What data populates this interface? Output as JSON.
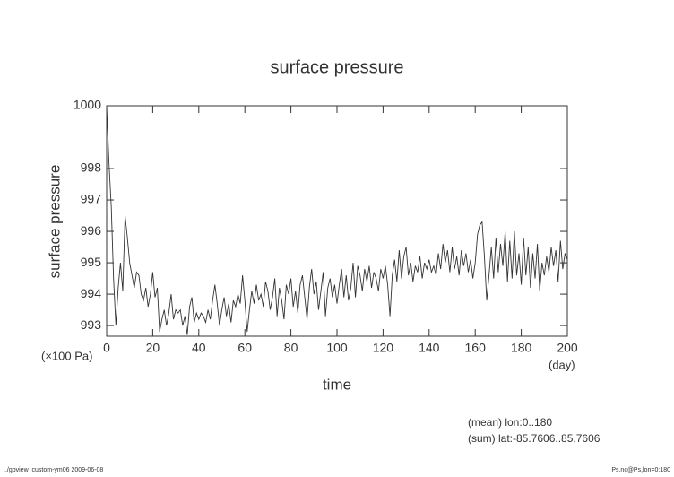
{
  "chart_data": {
    "type": "line",
    "title": "surface pressure",
    "ylabel": "surface pressure",
    "xlabel": "time",
    "yunit": "(×100 Pa)",
    "xunit": "(day)",
    "notes": [
      "(mean) lon:0..180",
      "(sum) lat:-85.7606..85.7606"
    ],
    "footer_left": "../gpview_custom-ym06  2009-06-08",
    "footer_right": "Ps.nc@Ps,lon=0:180",
    "xlim": [
      0,
      200
    ],
    "xticks": [
      0,
      20,
      40,
      60,
      80,
      100,
      120,
      140,
      160,
      180,
      200
    ],
    "ylim": [
      992.66,
      1000
    ],
    "yticks": [
      993,
      994,
      995,
      996,
      997,
      998,
      1000
    ],
    "series": [
      {
        "color": "#333333",
        "x": [
          0,
          1,
          2,
          3,
          4,
          5,
          6,
          7,
          8,
          9,
          10,
          11,
          12,
          13,
          14,
          15,
          16,
          17,
          18,
          19,
          20,
          21,
          22,
          23,
          24,
          25,
          26,
          27,
          28,
          29,
          30,
          31,
          32,
          33,
          34,
          35,
          36,
          37,
          38,
          39,
          40,
          41,
          42,
          43,
          44,
          45,
          46,
          47,
          48,
          49,
          50,
          51,
          52,
          53,
          54,
          55,
          56,
          57,
          58,
          59,
          60,
          61,
          62,
          63,
          64,
          65,
          66,
          67,
          68,
          69,
          70,
          71,
          72,
          73,
          74,
          75,
          76,
          77,
          78,
          79,
          80,
          81,
          82,
          83,
          84,
          85,
          86,
          87,
          88,
          89,
          90,
          91,
          92,
          93,
          94,
          95,
          96,
          97,
          98,
          99,
          100,
          101,
          102,
          103,
          104,
          105,
          106,
          107,
          108,
          109,
          110,
          111,
          112,
          113,
          114,
          115,
          116,
          117,
          118,
          119,
          120,
          121,
          122,
          123,
          124,
          125,
          126,
          127,
          128,
          129,
          130,
          131,
          132,
          133,
          134,
          135,
          136,
          137,
          138,
          139,
          140,
          141,
          142,
          143,
          144,
          145,
          146,
          147,
          148,
          149,
          150,
          151,
          152,
          153,
          154,
          155,
          156,
          157,
          158,
          159,
          160,
          161,
          162,
          163,
          164,
          165,
          166,
          167,
          168,
          169,
          170,
          171,
          172,
          173,
          174,
          175,
          176,
          177,
          178,
          179,
          180,
          181,
          182,
          183,
          184,
          185,
          186,
          187,
          188,
          189,
          190,
          191,
          192,
          193,
          194,
          195,
          196,
          197,
          198,
          199,
          200
        ],
        "values": [
          1000,
          998.2,
          996.8,
          994.5,
          993.0,
          994.2,
          995.0,
          994.1,
          996.5,
          995.8,
          995.0,
          994.6,
          994.2,
          994.7,
          994.6,
          994.0,
          993.8,
          994.2,
          993.6,
          994.0,
          994.7,
          993.9,
          994.2,
          992.8,
          993.2,
          993.5,
          993.0,
          993.4,
          994.0,
          993.2,
          993.5,
          993.4,
          993.5,
          993.0,
          993.3,
          992.7,
          993.6,
          993.9,
          993.1,
          993.4,
          993.2,
          993.4,
          993.3,
          993.1,
          993.5,
          993.2,
          993.8,
          994.3,
          993.7,
          993.0,
          993.5,
          993.9,
          993.3,
          993.7,
          993.1,
          993.8,
          993.6,
          994.0,
          993.7,
          994.6,
          993.8,
          992.8,
          993.5,
          994.1,
          993.7,
          994.3,
          993.8,
          994.0,
          993.6,
          994.4,
          994.1,
          993.5,
          993.9,
          994.5,
          993.3,
          994.2,
          993.8,
          993.2,
          994.3,
          994.0,
          994.5,
          993.6,
          994.1,
          993.4,
          994.3,
          994.6,
          993.9,
          993.2,
          994.2,
          994.8,
          994.0,
          994.4,
          993.5,
          994.1,
          994.7,
          993.3,
          994.2,
          994.5,
          993.9,
          994.3,
          993.7,
          994.3,
          994.8,
          993.9,
          994.6,
          993.8,
          994.2,
          995.0,
          993.9,
          994.9,
          994.6,
          994.1,
          994.8,
          994.4,
          994.9,
          994.2,
          994.7,
          994.5,
          994.1,
          994.8,
          994.5,
          994.9,
          994.3,
          993.3,
          994.6,
          995.1,
          994.4,
          995.4,
          994.5,
          995.2,
          995.5,
          994.6,
          995.0,
          994.4,
          994.9,
          994.7,
          995.2,
          994.5,
          995.0,
          994.8,
          995.1,
          994.7,
          994.9,
          994.6,
          995.3,
          994.8,
          995.6,
          995.0,
          995.4,
          994.7,
          995.5,
          994.8,
          995.2,
          994.6,
          995.4,
          994.9,
          995.3,
          994.7,
          995.1,
          994.5,
          995.0,
          995.9,
          996.2,
          996.3,
          995.2,
          993.8,
          994.6,
          995.5,
          994.5,
          995.8,
          994.7,
          995.6,
          994.9,
          996.0,
          994.4,
          995.7,
          994.5,
          996.0,
          994.6,
          995.3,
          994.3,
          995.8,
          994.6,
          995.5,
          994.2,
          995.3,
          994.5,
          995.6,
          994.1,
          995.0,
          994.6,
          995.2,
          994.7,
          995.5,
          994.9,
          995.4,
          994.4,
          995.7,
          994.8,
          995.3,
          995.1
        ]
      }
    ]
  }
}
